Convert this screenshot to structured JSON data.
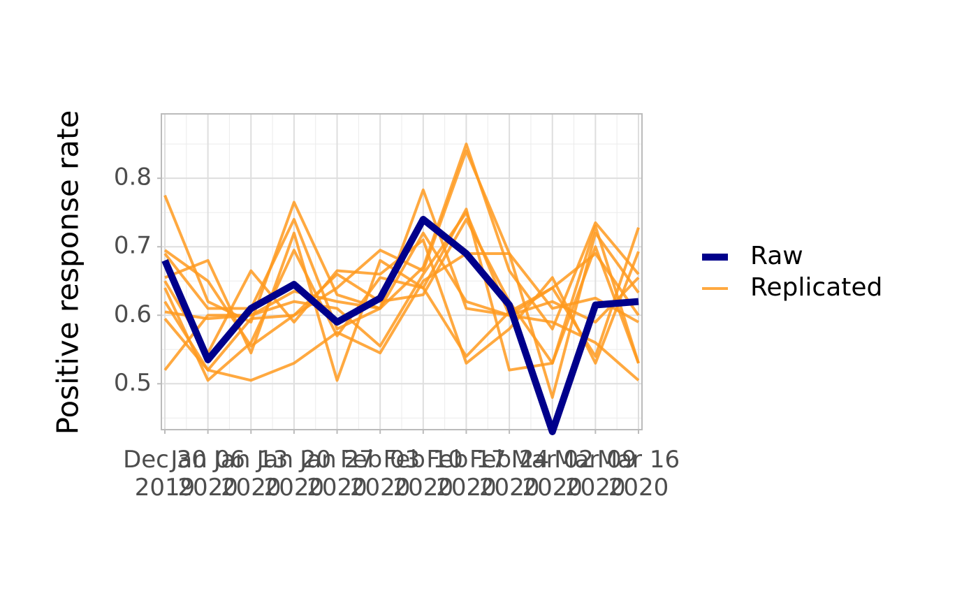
{
  "chart_data": {
    "type": "line",
    "y_label": "Positive response rate",
    "x": [
      "Dec 30\n2019",
      "Jan 06\n2020",
      "Jan 13\n2020",
      "Jan 20\n2020",
      "Jan 27\n2020",
      "Feb 03\n2020",
      "Feb 10\n2020",
      "Feb 17\n2020",
      "Feb 24\n2020",
      "Mar 02\n2020",
      "Mar 09\n2020",
      "Mar 16\n2020"
    ],
    "ylim": [
      0.433,
      0.894
    ],
    "yticks": [
      0.5,
      0.6,
      0.7,
      0.8
    ],
    "grid": true,
    "series": [
      {
        "name": "Raw",
        "color": "#00008b",
        "values": [
          0.68,
          0.535,
          0.61,
          0.645,
          0.59,
          0.625,
          0.74,
          0.69,
          0.615,
          0.43,
          0.615,
          0.62
        ]
      },
      {
        "name": "Replicated",
        "color": "#ff9a1f",
        "lines": [
          [
            0.775,
            0.62,
            0.59,
            0.765,
            0.63,
            0.61,
            0.67,
            0.85,
            0.665,
            0.58,
            0.735,
            0.66
          ],
          [
            0.695,
            0.65,
            0.555,
            0.6,
            0.64,
            0.695,
            0.665,
            0.84,
            0.69,
            0.48,
            0.72,
            0.633
          ],
          [
            0.69,
            0.61,
            0.61,
            0.74,
            0.58,
            0.61,
            0.783,
            0.61,
            0.6,
            0.64,
            0.54,
            0.728
          ],
          [
            0.655,
            0.68,
            0.545,
            0.72,
            0.505,
            0.68,
            0.64,
            0.755,
            0.52,
            0.53,
            0.73,
            0.53
          ],
          [
            0.65,
            0.545,
            0.665,
            0.59,
            0.665,
            0.66,
            0.71,
            0.53,
            0.58,
            0.655,
            0.53,
            0.693
          ],
          [
            0.64,
            0.505,
            0.56,
            0.695,
            0.57,
            0.655,
            0.64,
            0.54,
            0.605,
            0.64,
            0.69,
            0.6
          ],
          [
            0.62,
            0.52,
            0.505,
            0.53,
            0.575,
            0.545,
            0.65,
            0.69,
            0.69,
            0.61,
            0.625,
            0.59
          ],
          [
            0.605,
            0.595,
            0.6,
            0.635,
            0.62,
            0.61,
            0.72,
            0.62,
            0.6,
            0.62,
            0.59,
            0.655
          ],
          [
            0.595,
            0.52,
            0.595,
            0.6,
            0.66,
            0.62,
            0.63,
            0.74,
            0.62,
            0.53,
            0.7,
            0.53
          ],
          [
            0.52,
            0.6,
            0.6,
            0.62,
            0.61,
            0.555,
            0.66,
            0.75,
            0.6,
            0.59,
            0.56,
            0.505
          ]
        ]
      }
    ]
  }
}
